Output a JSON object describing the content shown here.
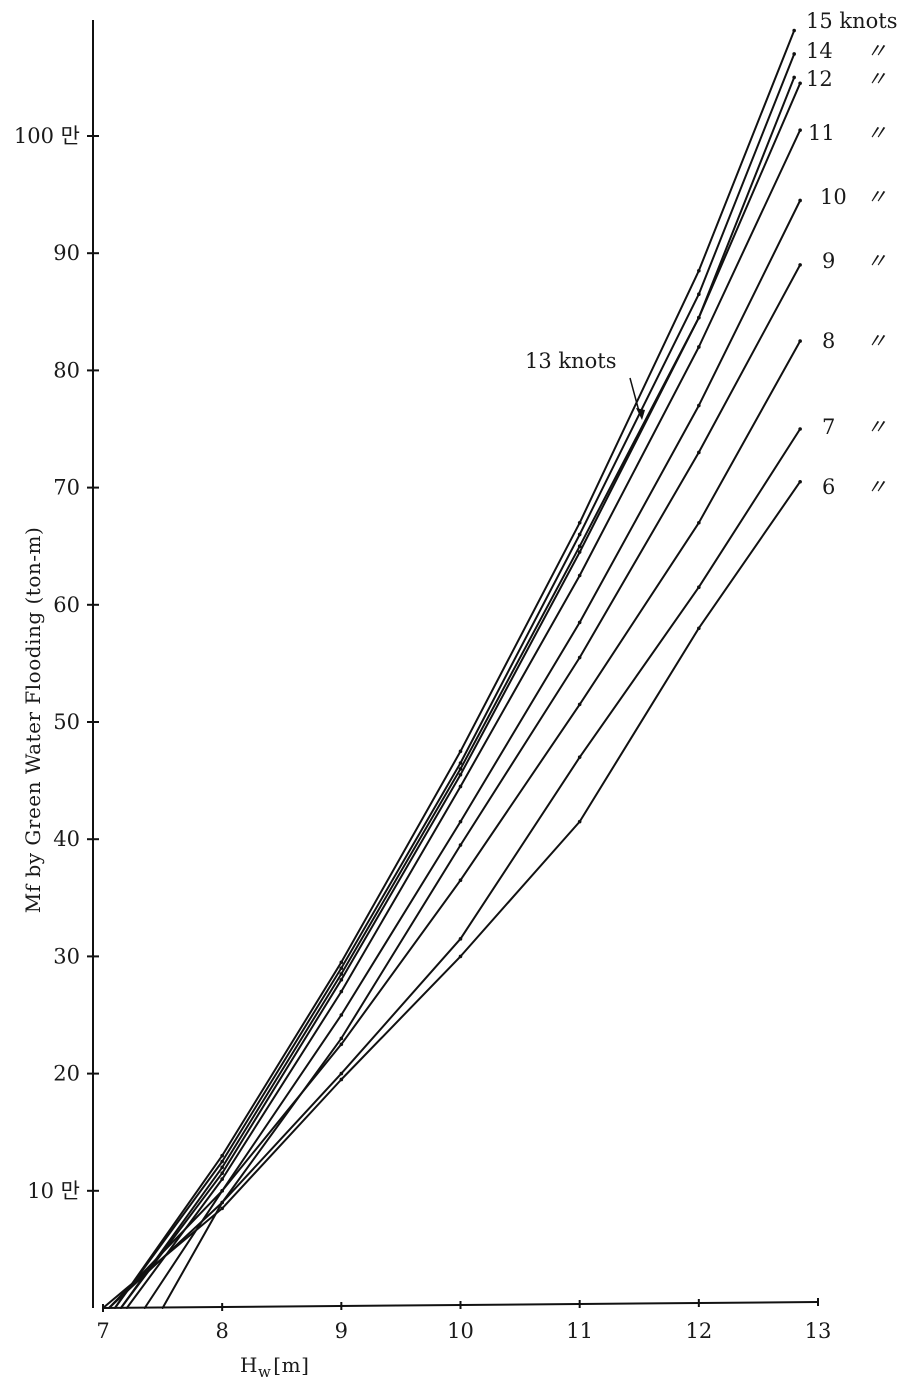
{
  "chart_data": {
    "type": "line",
    "title": "",
    "xlabel": "Hw[m]",
    "xlabel_base": "H",
    "xlabel_sub": "w",
    "xlabel_unit": "[m]",
    "ylabel": "Mf by Green Water Flooding (ton-m)",
    "xlim": [
      7,
      13
    ],
    "ylim": [
      0,
      110
    ],
    "x_ticks": [
      {
        "value": 7,
        "label": "7"
      },
      {
        "value": 8,
        "label": "8"
      },
      {
        "value": 9,
        "label": "9"
      },
      {
        "value": 10,
        "label": "10"
      },
      {
        "value": 11,
        "label": "11"
      },
      {
        "value": 12,
        "label": "12"
      },
      {
        "value": 13,
        "label": "13"
      }
    ],
    "y_ticks": [
      {
        "value": 10,
        "label": "10 만"
      },
      {
        "value": 20,
        "label": "20"
      },
      {
        "value": 30,
        "label": "30"
      },
      {
        "value": 40,
        "label": "40"
      },
      {
        "value": 50,
        "label": "50"
      },
      {
        "value": 60,
        "label": "60"
      },
      {
        "value": 70,
        "label": "70"
      },
      {
        "value": 80,
        "label": "80"
      },
      {
        "value": 90,
        "label": "90"
      },
      {
        "value": 100,
        "label": "100 만"
      }
    ],
    "grid": false,
    "series": [
      {
        "name": "15 knots",
        "label": "15 knots",
        "ditto": "",
        "x": [
          7.1,
          8,
          9,
          10,
          11,
          12,
          12.8
        ],
        "y": [
          0,
          13,
          29.5,
          47.5,
          67,
          88.5,
          109
        ]
      },
      {
        "name": "14",
        "label": "14",
        "ditto": "〃",
        "x": [
          7.1,
          8,
          9,
          10,
          11,
          12,
          12.8
        ],
        "y": [
          0,
          12.5,
          29,
          46.5,
          66,
          86.5,
          107
        ]
      },
      {
        "name": "13 knots",
        "label": "13 knots",
        "ditto": "",
        "x": [
          7.15,
          8,
          9,
          10,
          11,
          12,
          12.85
        ],
        "y": [
          0,
          12,
          28.5,
          46,
          65,
          84.5,
          104.5
        ]
      },
      {
        "name": "12",
        "label": "12",
        "ditto": "〃",
        "x": [
          7.15,
          8,
          9,
          10,
          11,
          12,
          12.8
        ],
        "y": [
          0,
          11.5,
          28,
          45.5,
          64.5,
          84.5,
          105
        ]
      },
      {
        "name": "11",
        "label": "11",
        "ditto": "〃",
        "x": [
          7.2,
          8,
          9,
          10,
          11,
          12,
          12.85
        ],
        "y": [
          0,
          11,
          27,
          44.5,
          62.5,
          82,
          100.5
        ]
      },
      {
        "name": "10",
        "label": "10",
        "ditto": "〃",
        "x": [
          7.35,
          8,
          9,
          10,
          11,
          12,
          12.85
        ],
        "y": [
          0,
          10,
          25,
          41.5,
          58.5,
          77,
          94.5
        ]
      },
      {
        "name": "9",
        "label": "9",
        "ditto": "〃",
        "x": [
          7.5,
          8,
          9,
          10,
          11,
          12,
          12.85
        ],
        "y": [
          0,
          9,
          23,
          39.5,
          55.5,
          73,
          89
        ]
      },
      {
        "name": "8",
        "label": "8",
        "ditto": "〃",
        "x": [
          7.05,
          8,
          9,
          10,
          11,
          12,
          12.85
        ],
        "y": [
          0,
          10,
          22.5,
          36.5,
          51.5,
          67,
          82.5
        ]
      },
      {
        "name": "7",
        "label": "7",
        "ditto": "〃",
        "x": [
          7.05,
          8,
          9,
          10,
          11,
          12,
          12.85
        ],
        "y": [
          0,
          9,
          20,
          31.5,
          47,
          61.5,
          75
        ]
      },
      {
        "name": "6",
        "label": "6",
        "ditto": "〃",
        "x": [
          7.0,
          8,
          9,
          10,
          11,
          12,
          12.85
        ],
        "y": [
          0,
          8.5,
          19.5,
          30,
          41.5,
          58,
          70.5
        ]
      }
    ]
  }
}
